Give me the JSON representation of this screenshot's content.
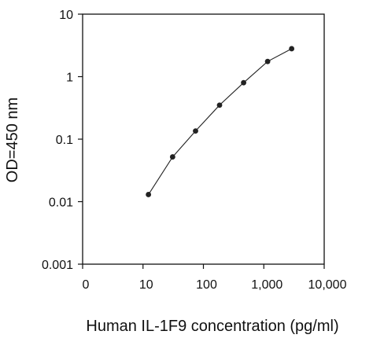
{
  "chart_data": {
    "type": "line",
    "title": "",
    "xlabel": "Human IL-1F9 concentration (pg/ml)",
    "ylabel": "OD=450 nm",
    "x_scale": "log",
    "y_scale": "log",
    "xlim": [
      1,
      10000
    ],
    "ylim": [
      0.001,
      10
    ],
    "x_ticks": [
      {
        "value": 1,
        "label": "0"
      },
      {
        "value": 10,
        "label": "10"
      },
      {
        "value": 100,
        "label": "100"
      },
      {
        "value": 1000,
        "label": "1,000"
      },
      {
        "value": 10000,
        "label": "10,000"
      }
    ],
    "y_ticks": [
      {
        "value": 0.001,
        "label": "0.001"
      },
      {
        "value": 0.01,
        "label": "0.01"
      },
      {
        "value": 0.1,
        "label": "0.1"
      },
      {
        "value": 1,
        "label": "1"
      },
      {
        "value": 10,
        "label": "10"
      }
    ],
    "grid": false,
    "legend": "none",
    "series": [
      {
        "color": "#222222",
        "marker": "circle",
        "x": [
          12.3,
          30.9,
          74.1,
          185,
          463,
          1157,
          2890
        ],
        "y": [
          0.013,
          0.052,
          0.135,
          0.35,
          0.8,
          1.75,
          2.8
        ]
      }
    ]
  }
}
